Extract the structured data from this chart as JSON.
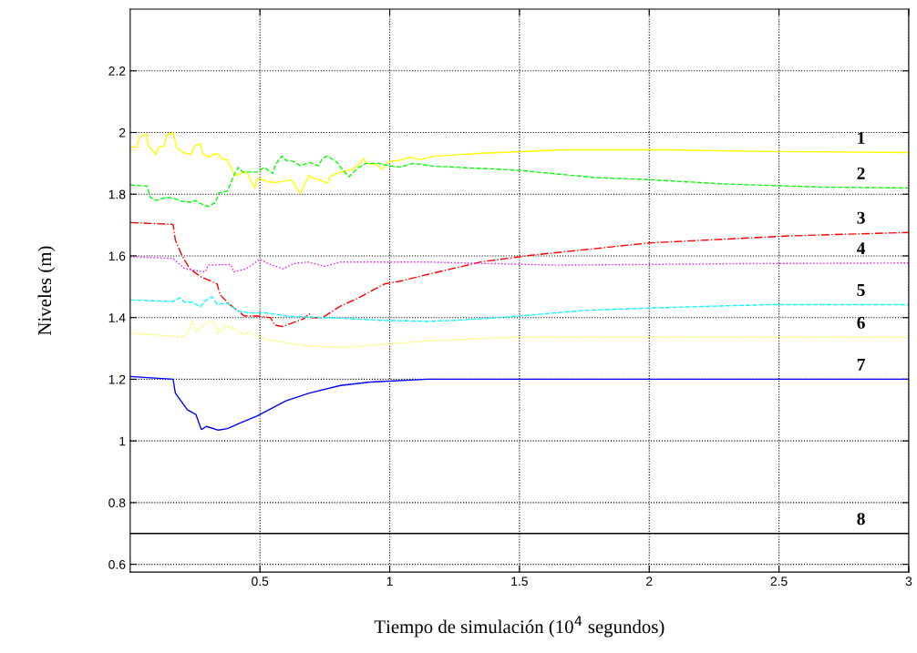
{
  "chart_data": {
    "type": "line",
    "xlabel": "Tiempo de simulación (10$^{4}$ segundos)",
    "ylabel": "Niveles (m)",
    "xlim": [
      0,
      3
    ],
    "ylim": [
      0.575,
      2.4
    ],
    "xticks": [
      0.5,
      1,
      1.5,
      2,
      2.5,
      3
    ],
    "yticks": [
      0.6,
      0.8,
      1,
      1.2,
      1.4,
      1.6,
      1.8,
      2,
      2.2
    ],
    "grid": true,
    "marker": "none",
    "series": [
      {
        "color": "#ffff00",
        "line_style": "solid",
        "x": [
          0,
          0.025,
          0.036,
          0.062,
          0.071,
          0.1,
          0.11,
          0.13,
          0.14,
          0.165,
          0.18,
          0.206,
          0.235,
          0.247,
          0.27,
          0.28,
          0.305,
          0.32,
          0.34,
          0.35,
          0.375,
          0.4,
          0.41,
          0.43,
          0.45,
          0.48,
          0.49,
          0.53,
          0.56,
          0.6,
          0.62,
          0.655,
          0.69,
          0.7,
          0.73,
          0.76,
          0.77,
          0.81,
          0.855,
          0.88,
          0.9,
          0.91,
          0.95,
          0.97,
          0.995,
          1.04,
          1.077,
          1.117,
          1.167,
          1.355,
          1.67,
          2.08,
          2.395,
          3.0
        ],
        "values": [
          1.953,
          1.953,
          1.985,
          1.995,
          1.955,
          1.93,
          1.953,
          1.955,
          1.99,
          2.0,
          1.95,
          1.934,
          1.93,
          1.955,
          1.965,
          1.93,
          1.92,
          1.93,
          1.93,
          1.916,
          1.91,
          1.867,
          1.86,
          1.87,
          1.87,
          1.82,
          1.852,
          1.84,
          1.838,
          1.843,
          1.847,
          1.803,
          1.862,
          1.852,
          1.847,
          1.836,
          1.857,
          1.872,
          1.88,
          1.896,
          1.916,
          1.9,
          1.896,
          1.88,
          1.906,
          1.91,
          1.92,
          1.912,
          1.923,
          1.933,
          1.944,
          1.944,
          1.939,
          1.935
        ]
      },
      {
        "color": "#00ff00",
        "line_style": "dashed",
        "x": [
          0,
          0.066,
          0.077,
          0.1,
          0.14,
          0.165,
          0.2,
          0.24,
          0.25,
          0.27,
          0.3,
          0.33,
          0.34,
          0.375,
          0.4,
          0.416,
          0.434,
          0.49,
          0.516,
          0.55,
          0.56,
          0.585,
          0.6,
          0.63,
          0.656,
          0.69,
          0.726,
          0.74,
          0.76,
          0.796,
          0.82,
          0.843,
          0.88,
          0.91,
          0.96,
          0.995,
          1.04,
          1.09,
          1.167,
          1.49,
          1.79,
          1.98,
          2.295,
          2.67,
          3.0
        ],
        "values": [
          1.83,
          1.826,
          1.79,
          1.78,
          1.79,
          1.787,
          1.777,
          1.774,
          1.78,
          1.77,
          1.76,
          1.774,
          1.803,
          1.81,
          1.862,
          1.887,
          1.872,
          1.872,
          1.887,
          1.867,
          1.897,
          1.924,
          1.91,
          1.906,
          1.892,
          1.903,
          1.892,
          1.916,
          1.924,
          1.904,
          1.877,
          1.857,
          1.887,
          1.9,
          1.9,
          1.892,
          1.888,
          1.9,
          1.891,
          1.878,
          1.854,
          1.848,
          1.833,
          1.823,
          1.82
        ]
      },
      {
        "color": "#ff0000",
        "line_style": "dashdot",
        "x": [
          0,
          0.165,
          0.174,
          0.2,
          0.23,
          0.27,
          0.335,
          0.346,
          0.387,
          0.44,
          0.49,
          0.54,
          0.557,
          0.586,
          0.62,
          0.668,
          0.69,
          0.7,
          0.74,
          0.81,
          0.88,
          0.925,
          0.98,
          1.04,
          1.147,
          1.355,
          1.545,
          2.0,
          2.546,
          3.0
        ],
        "values": [
          1.708,
          1.702,
          1.651,
          1.6,
          1.558,
          1.533,
          1.509,
          1.474,
          1.44,
          1.405,
          1.405,
          1.4,
          1.376,
          1.371,
          1.381,
          1.396,
          1.412,
          1.4,
          1.4,
          1.437,
          1.464,
          1.484,
          1.509,
          1.518,
          1.54,
          1.581,
          1.602,
          1.642,
          1.665,
          1.676
        ]
      },
      {
        "color": "#ff00ff",
        "line_style": "dotted",
        "x": [
          0,
          0.165,
          0.21,
          0.29,
          0.3,
          0.387,
          0.4,
          0.446,
          0.5,
          0.54,
          0.59,
          0.63,
          0.685,
          0.75,
          0.81,
          0.95,
          1.147,
          1.64,
          2.4,
          3.0
        ],
        "values": [
          1.597,
          1.592,
          1.558,
          1.548,
          1.57,
          1.572,
          1.548,
          1.558,
          1.589,
          1.572,
          1.558,
          1.575,
          1.58,
          1.566,
          1.58,
          1.58,
          1.58,
          1.57,
          1.575,
          1.577
        ]
      },
      {
        "color": "#00ffff",
        "line_style": "dashed",
        "x": [
          0,
          0.165,
          0.19,
          0.21,
          0.24,
          0.27,
          0.29,
          0.315,
          0.335,
          0.37,
          0.42,
          0.47,
          0.53,
          0.61,
          0.81,
          0.97,
          1.147,
          1.255,
          1.456,
          1.745,
          2.0,
          2.46,
          3.0
        ],
        "values": [
          1.457,
          1.452,
          1.464,
          1.45,
          1.45,
          1.435,
          1.455,
          1.467,
          1.443,
          1.447,
          1.42,
          1.415,
          1.415,
          1.404,
          1.398,
          1.391,
          1.388,
          1.391,
          1.402,
          1.423,
          1.431,
          1.442,
          1.442
        ]
      },
      {
        "color": "#ffff00",
        "line_style": "dotted",
        "x": [
          0,
          0.2,
          0.22,
          0.24,
          0.255,
          0.305,
          0.32,
          0.34,
          0.364,
          0.395,
          0.434,
          0.46,
          0.516,
          0.586,
          0.69,
          0.843,
          0.98,
          1.147,
          1.48,
          3.0
        ],
        "values": [
          1.35,
          1.337,
          1.351,
          1.388,
          1.356,
          1.386,
          1.39,
          1.351,
          1.371,
          1.366,
          1.346,
          1.351,
          1.332,
          1.32,
          1.307,
          1.304,
          1.314,
          1.324,
          1.336,
          1.336
        ]
      },
      {
        "color": "#0000ff",
        "line_style": "solid",
        "x": [
          0,
          0.165,
          0.174,
          0.22,
          0.253,
          0.274,
          0.294,
          0.34,
          0.375,
          0.42,
          0.49,
          0.6,
          0.69,
          0.81,
          0.925,
          1.147,
          3.0
        ],
        "values": [
          1.209,
          1.2,
          1.155,
          1.101,
          1.086,
          1.037,
          1.047,
          1.035,
          1.04,
          1.057,
          1.081,
          1.13,
          1.155,
          1.18,
          1.191,
          1.2,
          1.2
        ]
      },
      {
        "color": "#000000",
        "line_style": "solid",
        "x": [
          0,
          3.0
        ],
        "values": [
          0.7,
          0.7
        ]
      }
    ],
    "annotations": [
      "1",
      "2",
      "3",
      "4",
      "5",
      "6",
      "7",
      "8"
    ]
  }
}
